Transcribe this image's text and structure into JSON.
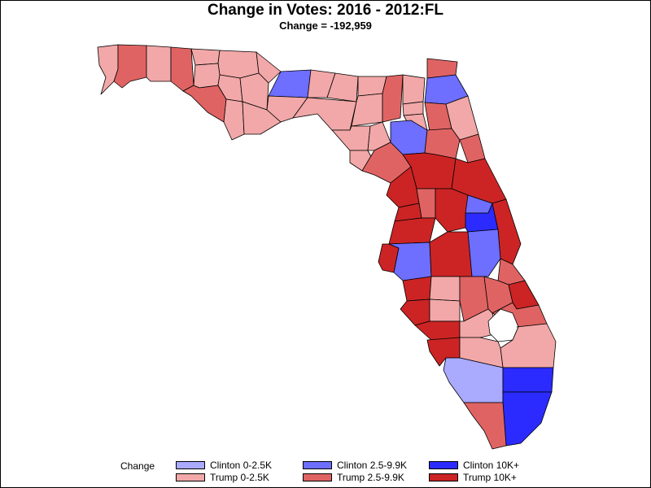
{
  "title": "Change in Votes: 2016 - 2012:FL",
  "subtitle": "Change = -192,959",
  "colors": {
    "clinton_0_2_5k": "#aaaaff",
    "clinton_2_5_9_9k": "#6e6eff",
    "clinton_10k_plus": "#2b2bff",
    "trump_0_2_5k": "#f2a8a8",
    "trump_2_5_9_9k": "#e06363",
    "trump_10k_plus": "#cc2424",
    "no_data": "#ffffff",
    "border": "#000000"
  },
  "legend": {
    "title": "Change",
    "items": [
      {
        "label": "Clinton 0-2.5K",
        "color": "#aaaaff"
      },
      {
        "label": "Clinton 2.5-9.9K",
        "color": "#6e6eff"
      },
      {
        "label": "Clinton 10K+",
        "color": "#2b2bff"
      },
      {
        "label": "Trump 0-2.5K",
        "color": "#f2a8a8"
      },
      {
        "label": "Trump 2.5-9.9K",
        "color": "#e06363"
      },
      {
        "label": "Trump 10K+",
        "color": "#cc2424"
      }
    ]
  }
}
